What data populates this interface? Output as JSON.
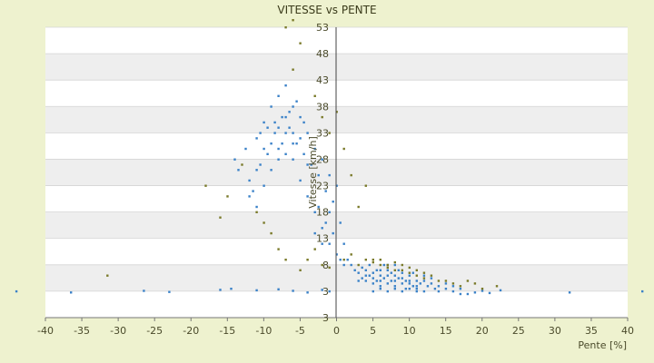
{
  "chart_data": {
    "type": "scatter",
    "title": "VITESSE vs PENTE",
    "xlabel": "Pente [%]",
    "ylabel": "Vitesse [km/h]",
    "xlim": [
      -40,
      40
    ],
    "ylim": [
      -2,
      53
    ],
    "x_ticks": [
      "-40",
      "-35",
      "-30",
      "-25",
      "-20",
      "-15",
      "-10",
      "-5",
      "0",
      "5",
      "10",
      "15",
      "20",
      "25",
      "30",
      "35",
      "40"
    ],
    "y_ticks": [
      "3",
      "3",
      "8",
      "13",
      "18",
      "23",
      "28",
      "33",
      "38",
      "43",
      "48",
      "53"
    ],
    "grid": true,
    "legend": "none",
    "colors": {
      "series_main": "#3b82c8",
      "series_secondary": "#7a7a2a",
      "band_shade": "#eeeeee",
      "band_white": "#ffffff",
      "axis": "#666666"
    },
    "series": [
      {
        "points": [
          [
            -44,
            3
          ],
          [
            -36.5,
            2.8
          ],
          [
            -26.5,
            3.1
          ],
          [
            -23,
            2.9
          ],
          [
            -16,
            3.3
          ],
          [
            -14.5,
            3.5
          ],
          [
            -11,
            3.2
          ],
          [
            -8,
            3.4
          ],
          [
            -6,
            3.1
          ],
          [
            -4,
            2.8
          ],
          [
            -2,
            3.3
          ],
          [
            -1,
            3
          ],
          [
            32,
            2.8
          ],
          [
            42,
            3
          ],
          [
            -14,
            28
          ],
          [
            -13.5,
            26
          ],
          [
            -12.5,
            30
          ],
          [
            -12,
            24
          ],
          [
            -11.5,
            22
          ],
          [
            -11,
            32
          ],
          [
            -10.5,
            27
          ],
          [
            -10,
            35
          ],
          [
            -9.5,
            29
          ],
          [
            -9,
            38
          ],
          [
            -8.5,
            33
          ],
          [
            -8,
            40
          ],
          [
            -7.5,
            36
          ],
          [
            -7,
            42
          ],
          [
            -6.5,
            34
          ],
          [
            -6,
            38
          ],
          [
            -5.5,
            31
          ],
          [
            -5,
            36
          ],
          [
            -4.5,
            29
          ],
          [
            -4,
            33
          ],
          [
            -3.5,
            27
          ],
          [
            -3,
            30
          ],
          [
            -2.5,
            25
          ],
          [
            -2,
            28
          ],
          [
            -1.5,
            22
          ],
          [
            -1,
            25
          ],
          [
            -0.5,
            20
          ],
          [
            -12,
            21
          ],
          [
            -11,
            19
          ],
          [
            -10,
            23
          ],
          [
            -9,
            26
          ],
          [
            -8,
            30
          ],
          [
            -7,
            33
          ],
          [
            -6,
            28
          ],
          [
            -5,
            24
          ],
          [
            -4,
            21
          ],
          [
            -3,
            18
          ],
          [
            -2,
            15
          ],
          [
            -1,
            12
          ],
          [
            0,
            10
          ],
          [
            0.5,
            9
          ],
          [
            1,
            8
          ],
          [
            -9,
            31
          ],
          [
            -8.5,
            35
          ],
          [
            -8,
            28
          ],
          [
            -7.5,
            31
          ],
          [
            -7,
            29
          ],
          [
            -6.5,
            37
          ],
          [
            -6,
            33
          ],
          [
            -5.5,
            39
          ],
          [
            -5,
            32
          ],
          [
            -4.5,
            35
          ],
          [
            -4,
            27
          ],
          [
            -9.5,
            34
          ],
          [
            -10,
            30
          ],
          [
            -10.5,
            33
          ],
          [
            -11,
            26
          ],
          [
            -8,
            34
          ],
          [
            -7,
            36
          ],
          [
            -6,
            31
          ],
          [
            -3,
            14
          ],
          [
            -2.5,
            19
          ],
          [
            -2,
            12
          ],
          [
            -1.5,
            16
          ],
          [
            -1,
            18
          ],
          [
            -0.5,
            14
          ],
          [
            0,
            23
          ],
          [
            0.5,
            16
          ],
          [
            1,
            12
          ],
          [
            1.5,
            9
          ],
          [
            2,
            8
          ],
          [
            2.5,
            7
          ],
          [
            3,
            6.5
          ],
          [
            3.5,
            5.5
          ],
          [
            4,
            7
          ],
          [
            4.5,
            6
          ],
          [
            5,
            6.5
          ],
          [
            5.5,
            5
          ],
          [
            6,
            6
          ],
          [
            6.5,
            5.5
          ],
          [
            7,
            7
          ],
          [
            7.5,
            5
          ],
          [
            8,
            6
          ],
          [
            8.5,
            5.5
          ],
          [
            9,
            4.5
          ],
          [
            9.5,
            5
          ],
          [
            10,
            6
          ],
          [
            10.5,
            4
          ],
          [
            11,
            5
          ],
          [
            11.5,
            4.5
          ],
          [
            12,
            5
          ],
          [
            12.5,
            4
          ],
          [
            13,
            4.5
          ],
          [
            13.5,
            3.5
          ],
          [
            14,
            4
          ],
          [
            15,
            3.5
          ],
          [
            16,
            3
          ],
          [
            17,
            3.5
          ],
          [
            18,
            2.5
          ],
          [
            19,
            2.8
          ],
          [
            20,
            3.1
          ],
          [
            21,
            2.7
          ],
          [
            22.5,
            3.2
          ],
          [
            3,
            5
          ],
          [
            3.5,
            7.5
          ],
          [
            4,
            5
          ],
          [
            4.5,
            8
          ],
          [
            5,
            4.5
          ],
          [
            5.5,
            7
          ],
          [
            6,
            4
          ],
          [
            6.5,
            8
          ],
          [
            7,
            4.5
          ],
          [
            7.5,
            6.5
          ],
          [
            8,
            4
          ],
          [
            8.5,
            7
          ],
          [
            9,
            5.5
          ],
          [
            9.5,
            3.5
          ],
          [
            10,
            4.5
          ],
          [
            10.5,
            6.5
          ],
          [
            11,
            3.5
          ],
          [
            12,
            6
          ],
          [
            13,
            5.5
          ],
          [
            14,
            3
          ],
          [
            15,
            4.5
          ],
          [
            16,
            4
          ],
          [
            17,
            2.5
          ],
          [
            4,
            6
          ],
          [
            5,
            5.5
          ],
          [
            6,
            5
          ],
          [
            7,
            6
          ],
          [
            8,
            5
          ],
          [
            9,
            6.5
          ],
          [
            10,
            5
          ],
          [
            11,
            4
          ],
          [
            6,
            7
          ],
          [
            7,
            8
          ],
          [
            8,
            8
          ],
          [
            5,
            3
          ],
          [
            6,
            3.5
          ],
          [
            7,
            3
          ],
          [
            8,
            3.5
          ],
          [
            9,
            3
          ],
          [
            10,
            3.5
          ],
          [
            11,
            3
          ],
          [
            12,
            3
          ]
        ]
      },
      {
        "points": [
          [
            -31.5,
            6
          ],
          [
            -18,
            23
          ],
          [
            -16,
            17
          ],
          [
            -15,
            21
          ],
          [
            -13,
            27
          ],
          [
            -11,
            18
          ],
          [
            -10,
            16
          ],
          [
            -9,
            14
          ],
          [
            -8,
            11
          ],
          [
            -7,
            9
          ],
          [
            -6,
            45
          ],
          [
            -5,
            50
          ],
          [
            -7,
            53
          ],
          [
            -6,
            55
          ],
          [
            -3,
            40
          ],
          [
            -2,
            36
          ],
          [
            -1,
            33
          ],
          [
            0,
            37
          ],
          [
            1,
            30
          ],
          [
            2,
            25
          ],
          [
            3,
            19
          ],
          [
            4,
            23
          ],
          [
            5,
            9
          ],
          [
            6,
            8
          ],
          [
            7,
            7.5
          ],
          [
            8,
            8.5
          ],
          [
            9,
            7
          ],
          [
            10,
            6.5
          ],
          [
            11,
            6
          ],
          [
            12,
            5.5
          ],
          [
            13,
            6
          ],
          [
            14,
            5
          ],
          [
            15,
            5
          ],
          [
            16,
            4.5
          ],
          [
            17,
            4
          ],
          [
            18,
            5
          ],
          [
            19,
            4.5
          ],
          [
            20,
            3.5
          ],
          [
            22,
            4
          ],
          [
            -4,
            9
          ],
          [
            -5,
            7
          ],
          [
            -3,
            11
          ],
          [
            -2,
            8
          ],
          [
            -1,
            7.5
          ],
          [
            1,
            9
          ],
          [
            2,
            10
          ],
          [
            3,
            8
          ],
          [
            4,
            9
          ],
          [
            5,
            8.5
          ],
          [
            6,
            9
          ],
          [
            7,
            8
          ],
          [
            8,
            7
          ],
          [
            9,
            8
          ],
          [
            10,
            7.5
          ],
          [
            11,
            7
          ],
          [
            12,
            6.5
          ]
        ]
      }
    ]
  }
}
